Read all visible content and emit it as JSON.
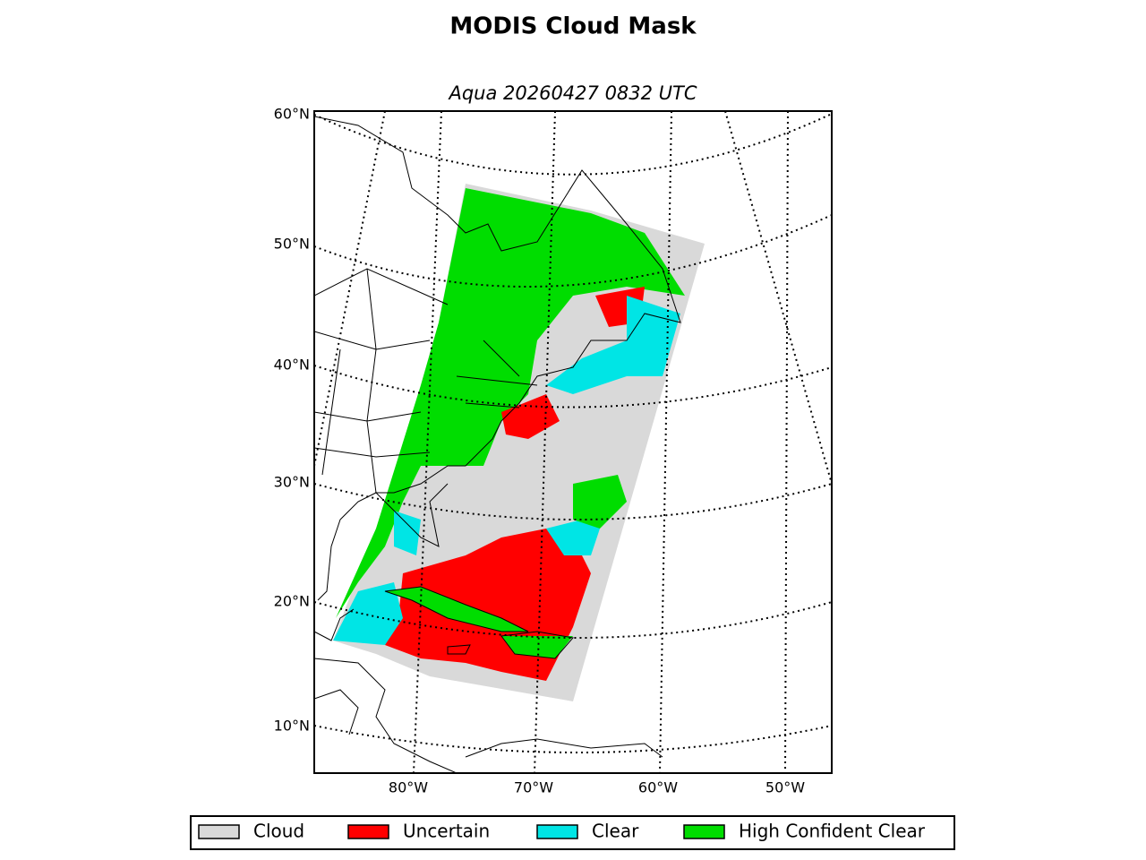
{
  "title": "MODIS Cloud Mask",
  "subtitle": "Aqua 20260427 0832 UTC",
  "lat_labels": [
    "60°N",
    "50°N",
    "40°N",
    "30°N",
    "20°N",
    "10°N"
  ],
  "lon_labels": [
    "80°W",
    "70°W",
    "60°W",
    "50°W"
  ],
  "legend": [
    {
      "label": "Cloud",
      "color": "#d9d9d9"
    },
    {
      "label": "Uncertain",
      "color": "#ff0000"
    },
    {
      "label": "Clear",
      "color": "#00e5e5"
    },
    {
      "label": "High Confident Clear",
      "color": "#00dd00"
    }
  ]
}
